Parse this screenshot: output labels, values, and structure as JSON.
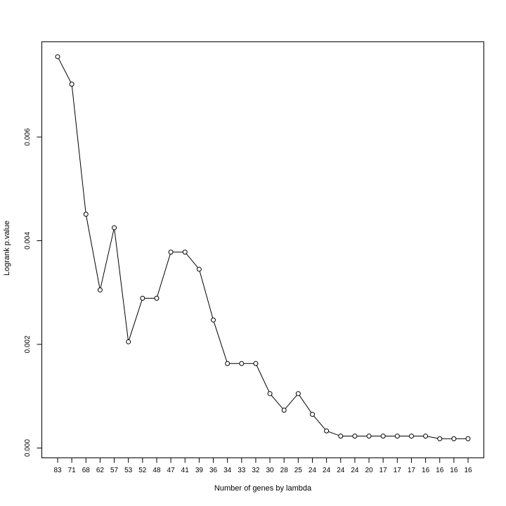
{
  "chart_data": {
    "type": "line",
    "title": "",
    "xlabel": "Number of genes by lambda",
    "ylabel": "Logrank p.value",
    "categories": [
      "83",
      "71",
      "68",
      "62",
      "57",
      "53",
      "52",
      "48",
      "47",
      "41",
      "39",
      "36",
      "34",
      "33",
      "32",
      "30",
      "28",
      "25",
      "24",
      "24",
      "24",
      "24",
      "20",
      "17",
      "17",
      "17",
      "16",
      "16",
      "16",
      "16"
    ],
    "series": [
      {
        "values": [
          0.00755,
          0.00702,
          0.00451,
          0.00305,
          0.00425,
          0.00205,
          0.00289,
          0.00289,
          0.00378,
          0.00378,
          0.00345,
          0.00247,
          0.00163,
          0.00163,
          0.00163,
          0.00105,
          0.00073,
          0.00105,
          0.00065,
          0.00033,
          0.00023,
          0.00023,
          0.00023,
          0.00023,
          0.00023,
          0.00023,
          0.00023,
          0.00018,
          0.00018,
          0.00018
        ],
        "color": "#000000",
        "marker": "open-circle"
      }
    ],
    "ylim": [
      -0.0002,
      0.0078
    ],
    "yticks": [
      "0.000",
      "0.002",
      "0.004",
      "0.006"
    ],
    "ytick_values": [
      0,
      0.002,
      0.004,
      0.006
    ],
    "grid": false
  }
}
